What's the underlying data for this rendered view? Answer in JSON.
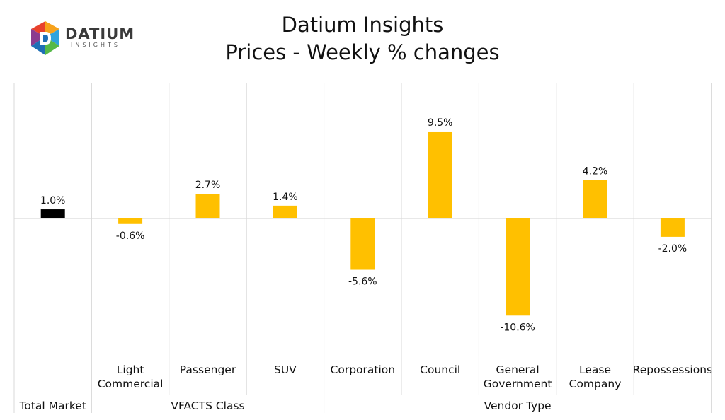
{
  "logo": {
    "name": "DATIUM",
    "tagline": "INSIGHTS"
  },
  "chart_data": {
    "type": "bar",
    "title": "Datium Insights",
    "subtitle": "Prices - Weekly % changes",
    "ylim": [
      -12,
      12
    ],
    "categories": [
      "",
      "Light Commercial",
      "Passenger",
      "SUV",
      "Corporation",
      "Council",
      "General Government",
      "Lease Company",
      "Repossessions"
    ],
    "category_lines": [
      [],
      [
        "Light",
        "Commercial"
      ],
      [
        "Passenger"
      ],
      [
        "SUV"
      ],
      [
        "Corporation"
      ],
      [
        "Council"
      ],
      [
        "General",
        "Government"
      ],
      [
        "Lease",
        "Company"
      ],
      [
        "Repossessions"
      ]
    ],
    "groups": [
      {
        "label": "Total Market",
        "span": [
          0,
          0
        ]
      },
      {
        "label": "VFACTS Class",
        "span": [
          1,
          3
        ]
      },
      {
        "label": "Vendor Type",
        "span": [
          4,
          8
        ]
      }
    ],
    "values": [
      1.0,
      -0.6,
      2.7,
      1.4,
      -5.6,
      9.5,
      -10.6,
      4.2,
      -2.0
    ],
    "data_labels": [
      "1.0%",
      "-0.6%",
      "2.7%",
      "1.4%",
      "-5.6%",
      "9.5%",
      "-10.6%",
      "4.2%",
      "-2.0%"
    ],
    "colors": [
      "#000000",
      "#FFC000",
      "#FFC000",
      "#FFC000",
      "#FFC000",
      "#FFC000",
      "#FFC000",
      "#FFC000",
      "#FFC000"
    ],
    "gridline_color": "#d9d9d9"
  }
}
